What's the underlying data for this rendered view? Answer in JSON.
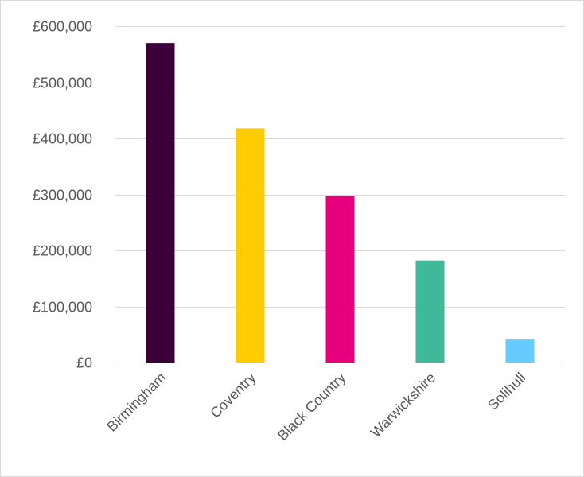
{
  "chart_data": {
    "type": "bar",
    "title": "",
    "xlabel": "",
    "ylabel": "",
    "categories": [
      "Birmingham",
      "Coventry",
      "Black Country",
      "Warwickshire",
      "Solihull"
    ],
    "values": [
      570000,
      418000,
      297000,
      182000,
      41000
    ],
    "colors": [
      "#3b0039",
      "#ffcc00",
      "#e6007e",
      "#40b89a",
      "#66ccff"
    ],
    "ylim": [
      0,
      600000
    ],
    "yticks": [
      0,
      100000,
      200000,
      300000,
      400000,
      500000,
      600000
    ],
    "ytick_labels": [
      "£0",
      "£100,000",
      "£200,000",
      "£300,000",
      "£400,000",
      "£500,000",
      "£600,000"
    ],
    "grid": true,
    "legend": "none",
    "gridline_color": "#d9d9d9",
    "axis_color": "#bfbfbf",
    "label_color": "#595959"
  }
}
